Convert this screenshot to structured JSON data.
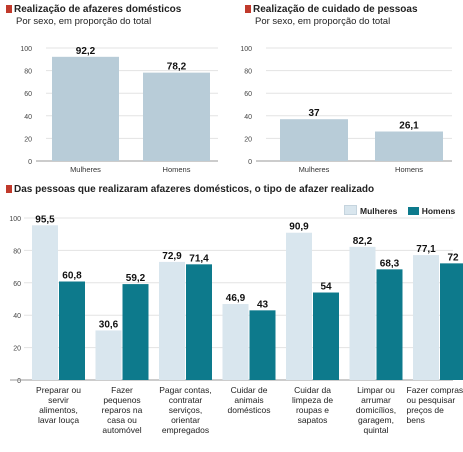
{
  "colors": {
    "primary_bar": "#b8ccd8",
    "mulheres": "#d9e6ee",
    "homens": "#0d7a8c",
    "red_marker": "#c0392b",
    "axis": "#999999"
  },
  "chart_data": [
    {
      "type": "bar",
      "title": "Realização de afazeres domésticos",
      "subtitle": "Por sexo, em proporção do total",
      "categories": [
        "Mulheres",
        "Homens"
      ],
      "values": [
        92.2,
        78.2
      ],
      "value_labels": [
        "92,2",
        "78,2"
      ],
      "yticks": [
        0,
        20,
        40,
        60,
        80,
        100
      ],
      "ylim": [
        0,
        100
      ],
      "grid": true
    },
    {
      "type": "bar",
      "title": "Realização de cuidado de pessoas",
      "subtitle": "Por sexo, em proporção do total",
      "categories": [
        "Mulheres",
        "Homens"
      ],
      "values": [
        37,
        26.1
      ],
      "value_labels": [
        "37",
        "26,1"
      ],
      "yticks": [
        0,
        20,
        40,
        60,
        80,
        100
      ],
      "ylim": [
        0,
        100
      ],
      "grid": true
    },
    {
      "type": "bar",
      "title": "Das pessoas que realizaram afazeres domésticos, o tipo de afazer realizado",
      "legend_position": "top-right",
      "categories": [
        "Preparar ou servir alimentos, lavar louça",
        "Fazer pequenos reparos na casa ou automóvel",
        "Pagar contas, contratar serviços, orientar empregados",
        "Cuidar de animais domésticos",
        "Cuidar da limpeza de roupas e sapatos",
        "Limpar ou arrumar domicílios, garagem, quintal",
        "Fazer compras ou pesquisar preços de bens"
      ],
      "category_lines": [
        [
          "Preparar ou",
          "servir",
          "alimentos,",
          "lavar louça"
        ],
        [
          "Fazer",
          "pequenos",
          "reparos na",
          "casa ou",
          "automóvel"
        ],
        [
          "Pagar contas,",
          "contratar",
          "serviços,",
          "orientar",
          "empregados"
        ],
        [
          "Cuidar de",
          "animais",
          "domésticos"
        ],
        [
          "Cuidar da",
          "limpeza de",
          "roupas e",
          "sapatos"
        ],
        [
          "Limpar ou",
          "arrumar",
          "domicílios,",
          "garagem,",
          "quintal"
        ],
        [
          "Fazer compras",
          "ou pesquisar",
          "preços de",
          "bens"
        ]
      ],
      "series": [
        {
          "name": "Mulheres",
          "values": [
            95.5,
            30.6,
            72.9,
            46.9,
            90.9,
            82.2,
            77.1
          ],
          "labels": [
            "95,5",
            "30,6",
            "72,9",
            "46,9",
            "90,9",
            "82,2",
            "77,1"
          ]
        },
        {
          "name": "Homens",
          "values": [
            60.8,
            59.2,
            71.4,
            43,
            54,
            68.3,
            72
          ],
          "labels": [
            "60,8",
            "59,2",
            "71,4",
            "43",
            "54",
            "68,3",
            "72"
          ]
        }
      ],
      "yticks": [
        0,
        20,
        40,
        60,
        80,
        100
      ],
      "ylim": [
        0,
        100
      ],
      "grid": true
    }
  ]
}
